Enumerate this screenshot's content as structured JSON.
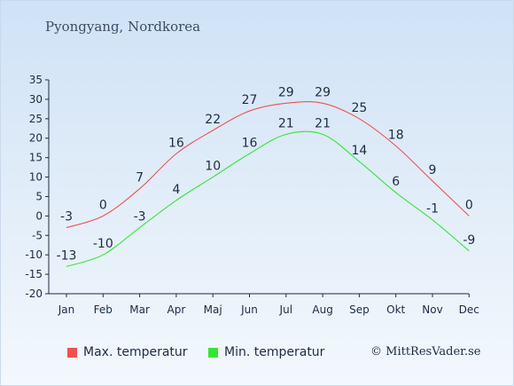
{
  "colors": {
    "max": "#f05050",
    "min": "#33e633",
    "axis": "#1c2b44",
    "label": "#1c2b44"
  },
  "chart_data": {
    "type": "line",
    "title": "Pyongyang, Nordkorea",
    "categories": [
      "Jan",
      "Feb",
      "Mar",
      "Apr",
      "Maj",
      "Jun",
      "Jul",
      "Aug",
      "Sep",
      "Okt",
      "Nov",
      "Dec"
    ],
    "ylim": [
      -20,
      35
    ],
    "yticks": [
      "35",
      "30",
      "25",
      "20",
      "15",
      "10",
      "5",
      "0",
      "-5",
      "-10",
      "-15",
      "-20"
    ],
    "series": [
      {
        "name": "Max. temperatur",
        "values": [
          -3,
          0,
          7,
          16,
          22,
          27,
          29,
          29,
          25,
          18,
          9,
          0
        ],
        "labels": [
          "-3",
          "0",
          "7",
          "16",
          "22",
          "27",
          "29",
          "29",
          "25",
          "18",
          "9",
          "0"
        ]
      },
      {
        "name": "Min. temperatur",
        "values": [
          -13,
          -10,
          -3,
          4,
          10,
          16,
          21,
          21,
          14,
          6,
          -1,
          -9
        ],
        "labels": [
          "-13",
          "-10",
          "-3",
          "4",
          "10",
          "16",
          "21",
          "21",
          "14",
          "6",
          "-1",
          "-9"
        ]
      }
    ],
    "grid": false,
    "legend": "bottom"
  },
  "credit": "© MittResVader.se"
}
